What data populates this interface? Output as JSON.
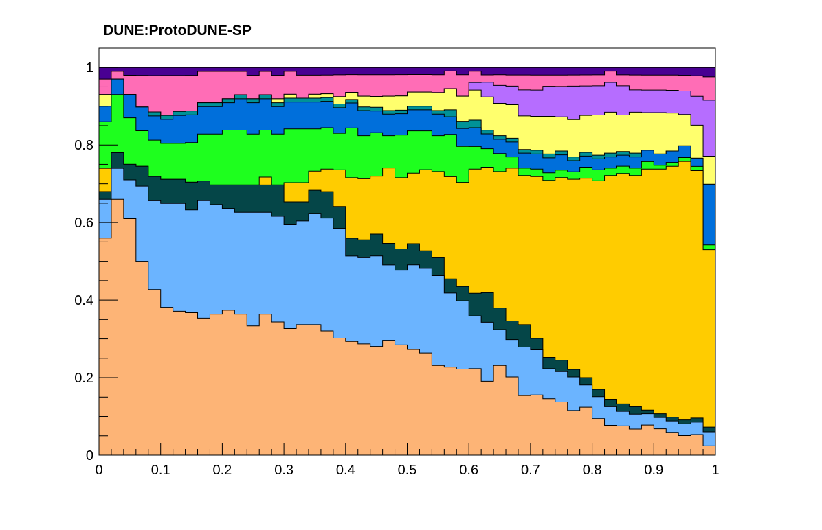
{
  "chart_data": {
    "type": "area",
    "stacked": true,
    "stacked_fractions": true,
    "title": "DUNE:ProtoDUNE-SP",
    "xlabel": "",
    "ylabel": "",
    "xlim": [
      0,
      1
    ],
    "ylim": [
      0,
      1.05
    ],
    "x_ticks": [
      "0",
      "0.1",
      "0.2",
      "0.3",
      "0.4",
      "0.5",
      "0.6",
      "0.7",
      "0.8",
      "0.9",
      "1"
    ],
    "y_ticks": [
      "0",
      "0.2",
      "0.4",
      "0.6",
      "0.8",
      "1"
    ],
    "x_tick_values": [
      0,
      0.1,
      0.2,
      0.3,
      0.4,
      0.5,
      0.6,
      0.7,
      0.8,
      0.9,
      1
    ],
    "y_tick_values": [
      0,
      0.2,
      0.4,
      0.6,
      0.8,
      1
    ],
    "grid": false,
    "legend": "none",
    "bins": 50,
    "bin_width": 0.02,
    "x_bin_lows": [
      0,
      0.02,
      0.04,
      0.06,
      0.08,
      0.1,
      0.12,
      0.14,
      0.16,
      0.18,
      0.2,
      0.22,
      0.24,
      0.26,
      0.28,
      0.3,
      0.32,
      0.34,
      0.36,
      0.38,
      0.4,
      0.42,
      0.44,
      0.46,
      0.48,
      0.5,
      0.52,
      0.54,
      0.56,
      0.58,
      0.6,
      0.62,
      0.64,
      0.66,
      0.68,
      0.7,
      0.72,
      0.74,
      0.76,
      0.78,
      0.8,
      0.82,
      0.84,
      0.86,
      0.88,
      0.9,
      0.92,
      0.94,
      0.96,
      0.98
    ],
    "series": [
      {
        "color": "#fdb476",
        "values": [
          0.56,
          0.66,
          0.61,
          0.49,
          0.41,
          0.37,
          0.36,
          0.36,
          0.35,
          0.36,
          0.37,
          0.36,
          0.33,
          0.36,
          0.34,
          0.33,
          0.34,
          0.34,
          0.33,
          0.32,
          0.32,
          0.31,
          0.3,
          0.32,
          0.31,
          0.3,
          0.29,
          0.25,
          0.25,
          0.24,
          0.23,
          0.2,
          0.25,
          0.21,
          0.16,
          0.16,
          0.15,
          0.14,
          0.12,
          0.13,
          0.1,
          0.08,
          0.08,
          0.07,
          0.08,
          0.07,
          0.06,
          0.05,
          0.05,
          0.02
        ]
      },
      {
        "color": "#6bb4ff",
        "values": [
          0.1,
          0.08,
          0.1,
          0.19,
          0.22,
          0.26,
          0.27,
          0.26,
          0.3,
          0.28,
          0.26,
          0.26,
          0.29,
          0.26,
          0.27,
          0.27,
          0.27,
          0.29,
          0.3,
          0.3,
          0.24,
          0.24,
          0.25,
          0.21,
          0.21,
          0.24,
          0.24,
          0.25,
          0.21,
          0.19,
          0.14,
          0.16,
          0.1,
          0.1,
          0.13,
          0.12,
          0.08,
          0.08,
          0.09,
          0.06,
          0.06,
          0.05,
          0.04,
          0.04,
          0.03,
          0.03,
          0.03,
          0.03,
          0.03,
          0.03
        ]
      },
      {
        "color": "#054648",
        "values": [
          0.02,
          0.04,
          0.04,
          0.05,
          0.06,
          0.06,
          0.06,
          0.07,
          0.05,
          0.05,
          0.06,
          0.07,
          0.07,
          0.07,
          0.08,
          0.06,
          0.05,
          0.06,
          0.07,
          0.06,
          0.05,
          0.05,
          0.06,
          0.06,
          0.06,
          0.06,
          0.05,
          0.05,
          0.04,
          0.04,
          0.06,
          0.08,
          0.06,
          0.05,
          0.06,
          0.03,
          0.03,
          0.03,
          0.02,
          0.02,
          0.02,
          0.02,
          0.02,
          0.02,
          0.01,
          0.01,
          0.01,
          0.01,
          0.01,
          0.01
        ]
      },
      {
        "color": "#ffcc00",
        "values": [
          0.06,
          0.0,
          0.0,
          0.0,
          0.0,
          0.0,
          0.0,
          0.0,
          0.0,
          0.0,
          0.0,
          0.0,
          0.0,
          0.02,
          0.0,
          0.05,
          0.05,
          0.05,
          0.06,
          0.1,
          0.17,
          0.17,
          0.16,
          0.21,
          0.2,
          0.2,
          0.23,
          0.24,
          0.29,
          0.29,
          0.33,
          0.34,
          0.38,
          0.41,
          0.4,
          0.43,
          0.47,
          0.48,
          0.51,
          0.54,
          0.57,
          0.6,
          0.63,
          0.62,
          0.64,
          0.65,
          0.66,
          0.66,
          0.6,
          0.38
        ]
      },
      {
        "color": "#1eff1e",
        "values": [
          0.12,
          0.15,
          0.12,
          0.09,
          0.09,
          0.09,
          0.09,
          0.1,
          0.12,
          0.13,
          0.14,
          0.14,
          0.13,
          0.12,
          0.13,
          0.14,
          0.14,
          0.11,
          0.11,
          0.1,
          0.14,
          0.12,
          0.12,
          0.09,
          0.12,
          0.12,
          0.11,
          0.1,
          0.12,
          0.1,
          0.06,
          0.05,
          0.05,
          0.03,
          0.02,
          0.02,
          0.02,
          0.02,
          0.02,
          0.03,
          0.03,
          0.02,
          0.02,
          0.02,
          0.02,
          0.01,
          0.01,
          0.01,
          0.01,
          0.01
        ]
      },
      {
        "color": "#006fdb",
        "values": [
          0.04,
          0.04,
          0.06,
          0.06,
          0.06,
          0.06,
          0.07,
          0.07,
          0.07,
          0.07,
          0.07,
          0.08,
          0.08,
          0.08,
          0.07,
          0.07,
          0.07,
          0.07,
          0.07,
          0.07,
          0.07,
          0.07,
          0.06,
          0.06,
          0.06,
          0.06,
          0.06,
          0.06,
          0.05,
          0.05,
          0.05,
          0.04,
          0.04,
          0.04,
          0.04,
          0.04,
          0.04,
          0.04,
          0.03,
          0.03,
          0.03,
          0.03,
          0.03,
          0.03,
          0.03,
          0.03,
          0.03,
          0.03,
          0.02,
          0.13
        ]
      },
      {
        "color": "#009297",
        "values": [
          0.0,
          0.0,
          0.0,
          0.0,
          0.01,
          0.01,
          0.01,
          0.01,
          0.01,
          0.01,
          0.01,
          0.01,
          0.01,
          0.01,
          0.01,
          0.01,
          0.01,
          0.01,
          0.01,
          0.01,
          0.01,
          0.01,
          0.01,
          0.01,
          0.01,
          0.01,
          0.01,
          0.01,
          0.02,
          0.02,
          0.02,
          0.01,
          0.01,
          0.01,
          0.01,
          0.01,
          0.01,
          0.01,
          0.01,
          0.01,
          0.01,
          0.01,
          0.01,
          0.01,
          0.0,
          0.0,
          0.0,
          0.0,
          0.0,
          0.0
        ]
      },
      {
        "color": "#ffff6d",
        "values": [
          0.03,
          0.0,
          0.0,
          0.0,
          0.0,
          0.0,
          0.0,
          0.0,
          0.0,
          0.0,
          0.0,
          0.0,
          0.0,
          0.0,
          0.01,
          0.01,
          0.0,
          0.01,
          0.01,
          0.02,
          0.02,
          0.03,
          0.03,
          0.04,
          0.04,
          0.04,
          0.04,
          0.05,
          0.06,
          0.07,
          0.08,
          0.09,
          0.09,
          0.09,
          0.09,
          0.09,
          0.1,
          0.09,
          0.1,
          0.1,
          0.11,
          0.11,
          0.1,
          0.11,
          0.1,
          0.11,
          0.1,
          0.08,
          0.08,
          0.06
        ]
      },
      {
        "color": "#b66dff",
        "values": [
          0.0,
          0.0,
          0.0,
          0.0,
          0.0,
          0.0,
          0.0,
          0.0,
          0.0,
          0.0,
          0.0,
          0.0,
          0.0,
          0.0,
          0.0,
          0.0,
          0.0,
          0.0,
          0.0,
          0.0,
          0.0,
          0.0,
          0.0,
          0.0,
          0.0,
          0.0,
          0.0,
          0.0,
          0.0,
          0.0,
          0.02,
          0.04,
          0.05,
          0.05,
          0.07,
          0.07,
          0.08,
          0.08,
          0.09,
          0.08,
          0.08,
          0.08,
          0.08,
          0.06,
          0.06,
          0.06,
          0.06,
          0.06,
          0.07,
          0.12
        ]
      },
      {
        "color": "#ff6db6",
        "values": [
          0.04,
          0.02,
          0.05,
          0.08,
          0.09,
          0.1,
          0.09,
          0.09,
          0.08,
          0.08,
          0.07,
          0.06,
          0.06,
          0.06,
          0.06,
          0.06,
          0.06,
          0.05,
          0.05,
          0.06,
          0.05,
          0.06,
          0.06,
          0.06,
          0.06,
          0.05,
          0.05,
          0.05,
          0.05,
          0.06,
          0.03,
          0.02,
          0.03,
          0.03,
          0.04,
          0.04,
          0.03,
          0.03,
          0.03,
          0.03,
          0.03,
          0.03,
          0.03,
          0.04,
          0.04,
          0.04,
          0.04,
          0.04,
          0.05,
          0.05
        ]
      },
      {
        "color": "#490092",
        "values": [
          0.03,
          0.01,
          0.02,
          0.02,
          0.02,
          0.02,
          0.02,
          0.02,
          0.01,
          0.01,
          0.01,
          0.01,
          0.02,
          0.01,
          0.02,
          0.01,
          0.02,
          0.02,
          0.02,
          0.02,
          0.02,
          0.02,
          0.02,
          0.02,
          0.02,
          0.02,
          0.02,
          0.02,
          0.01,
          0.02,
          0.01,
          0.02,
          0.02,
          0.02,
          0.02,
          0.02,
          0.02,
          0.02,
          0.02,
          0.02,
          0.02,
          0.01,
          0.02,
          0.02,
          0.02,
          0.02,
          0.02,
          0.02,
          0.02,
          0.02
        ]
      }
    ]
  }
}
